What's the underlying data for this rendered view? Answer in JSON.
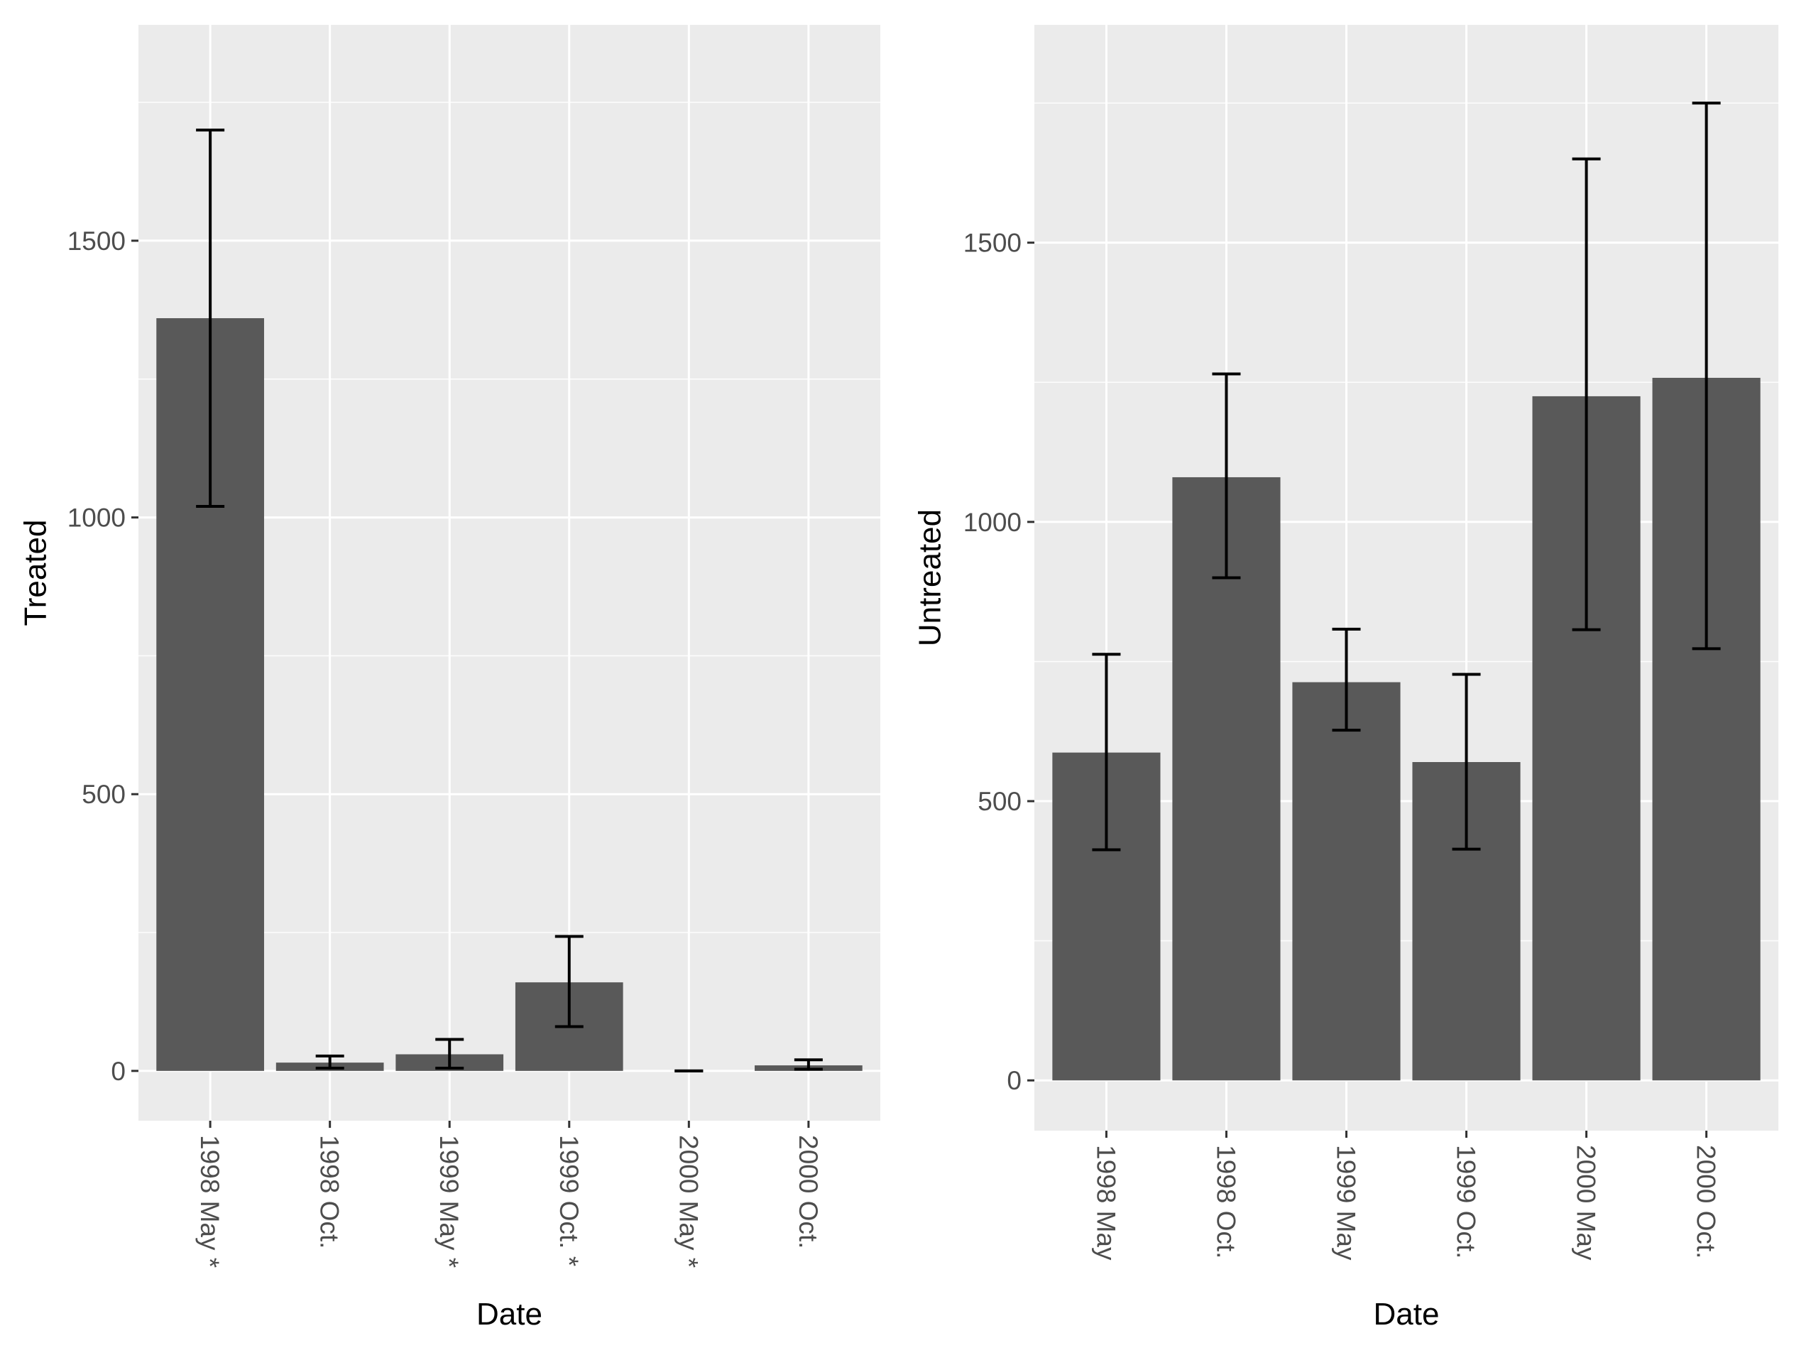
{
  "chart_data": [
    {
      "type": "bar",
      "title": "",
      "xlabel": "Date",
      "ylabel": "Treated",
      "categories": [
        "1998 May *",
        "1998 Oct.",
        "1999 May *",
        "1999 Oct. *",
        "2000 May *",
        "2000 Oct."
      ],
      "values": [
        1360,
        15,
        30,
        160,
        0,
        10
      ],
      "error_low": [
        1020,
        5,
        5,
        80,
        0,
        3
      ],
      "error_high": [
        1700,
        27,
        57,
        243,
        0,
        20
      ],
      "ylim": [
        -90,
        1890
      ],
      "yticks": [
        0,
        500,
        1000,
        1500
      ],
      "grid": true,
      "legend": "none"
    },
    {
      "type": "bar",
      "title": "",
      "xlabel": "Date",
      "ylabel": "Untreated",
      "categories": [
        "1998 May",
        "1998 Oct.",
        "1999 May",
        "1999 Oct.",
        "2000 May",
        "2000 Oct."
      ],
      "values": [
        587,
        1080,
        713,
        570,
        1225,
        1258
      ],
      "error_low": [
        413,
        900,
        627,
        414,
        807,
        773
      ],
      "error_high": [
        763,
        1265,
        808,
        727,
        1650,
        1750
      ],
      "ylim": [
        -90,
        1890
      ],
      "yticks": [
        0,
        500,
        1000,
        1500
      ],
      "grid": true,
      "legend": "none"
    }
  ]
}
